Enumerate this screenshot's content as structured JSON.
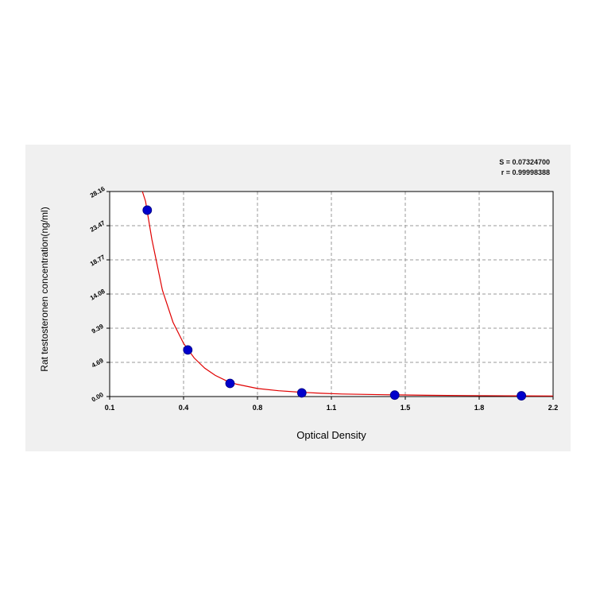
{
  "chart_data": {
    "type": "scatter",
    "xlabel": "Optical Density",
    "ylabel": "Rat testosteronen concentration(ng/ml)",
    "xlim": [
      0.1,
      2.2
    ],
    "ylim": [
      0,
      28.16
    ],
    "x_ticks": [
      "0.1",
      "0.4",
      "0.8",
      "1.1",
      "1.5",
      "1.8",
      "2.2"
    ],
    "y_ticks": [
      "0.00",
      "4.69",
      "9.39",
      "14.08",
      "18.77",
      "23.47",
      "28.16"
    ],
    "grid": true,
    "annotation_lines": [
      "S = 0.07324700",
      "r = 0.99998388"
    ],
    "series": [
      {
        "color": "#0000cc",
        "points": [
          {
            "x": 0.278,
            "y": 25.6
          },
          {
            "x": 0.47,
            "y": 6.4
          },
          {
            "x": 0.67,
            "y": 1.8
          },
          {
            "x": 1.01,
            "y": 0.5
          },
          {
            "x": 1.45,
            "y": 0.2
          },
          {
            "x": 2.05,
            "y": 0.1
          }
        ]
      }
    ],
    "fit_curve": {
      "color": "#e00000",
      "points": [
        [
          0.255,
          28.16
        ],
        [
          0.27,
          26.8
        ],
        [
          0.3,
          21.6
        ],
        [
          0.35,
          14.6
        ],
        [
          0.4,
          10.2
        ],
        [
          0.45,
          7.3
        ],
        [
          0.5,
          5.3
        ],
        [
          0.55,
          3.9
        ],
        [
          0.6,
          2.9
        ],
        [
          0.65,
          2.2
        ],
        [
          0.7,
          1.7
        ],
        [
          0.8,
          1.1
        ],
        [
          0.9,
          0.8
        ],
        [
          1.0,
          0.6
        ],
        [
          1.1,
          0.45
        ],
        [
          1.2,
          0.35
        ],
        [
          1.4,
          0.25
        ],
        [
          1.6,
          0.18
        ],
        [
          1.8,
          0.13
        ],
        [
          2.0,
          0.1
        ],
        [
          2.2,
          0.08
        ]
      ]
    }
  }
}
